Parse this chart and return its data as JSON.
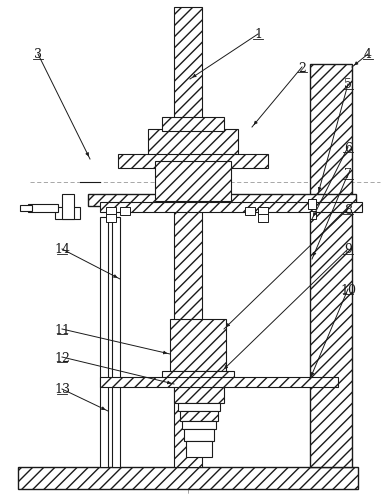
{
  "bg_color": "#ffffff",
  "line_color": "#1a1a1a",
  "fig_w": 3.88,
  "fig_h": 5.02,
  "dpi": 100
}
